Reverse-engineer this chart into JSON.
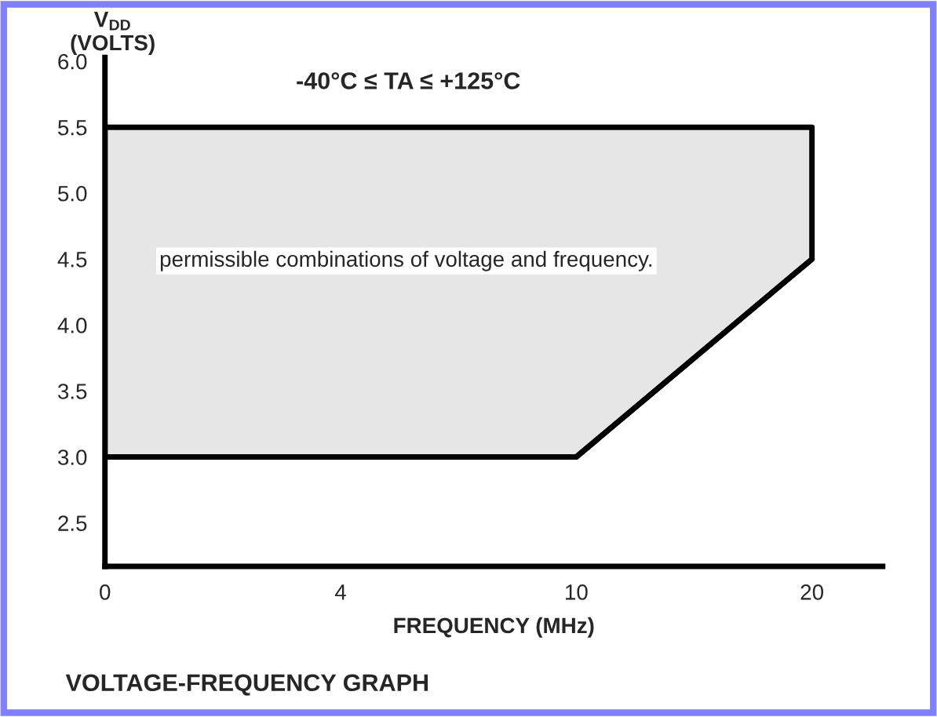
{
  "chart_data": {
    "type": "area",
    "title": "VOLTAGE-FREQUENCY GRAPH",
    "subtitle": "-40°C ≤ TA ≤ +125°C",
    "xlabel": "FREQUENCY (MHz)",
    "ylabel": "V$_{DD}$\n(VOLTS)",
    "categories": [
      "0",
      "4",
      "10",
      "20"
    ],
    "series": [
      {
        "color": "#e6e6e6",
        "values": [
          5.5,
          5.5,
          5.5,
          5.5
        ]
      },
      {
        "type": "line",
        "color": "#000000",
        "values": [
          3.0,
          3.0,
          3.0,
          4.5
        ]
      }
    ],
    "ylim": [
      2.17,
      6.03
    ],
    "yticks": [
      {
        "value": 2.5,
        "label": "2.5"
      },
      {
        "value": 3.0,
        "label": "3.0"
      },
      {
        "value": 3.5,
        "label": "3.5"
      },
      {
        "value": 4.0,
        "label": "4.0"
      },
      {
        "value": 4.5,
        "label": "4.5"
      },
      {
        "value": 5.0,
        "label": "5.0"
      },
      {
        "value": 5.5,
        "label": "5.5"
      },
      {
        "value": 6.0,
        "label": "6.0"
      }
    ],
    "annotations": [
      "permissible combinations of voltage and frequency."
    ],
    "grid": false,
    "legend": false
  }
}
